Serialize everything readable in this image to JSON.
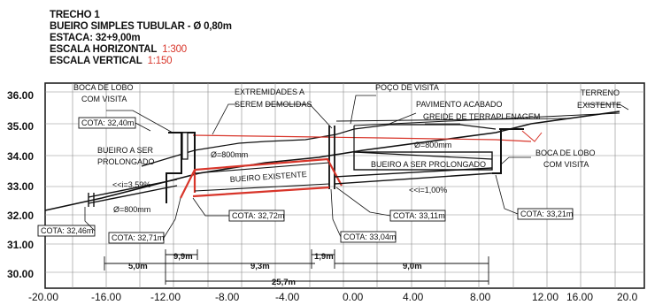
{
  "header": {
    "line1": "TRECHO 1",
    "line2": "BUEIRO SIMPLES TUBULAR - Ø 0,80m",
    "line3": "ESTACA: 32+9,00m",
    "line4_label": "ESCALA HORIZONTAL",
    "line4_value": "1:300",
    "line5_label": "ESCALA VERTICAL",
    "line5_value": "1:150"
  },
  "axes": {
    "y_ticks": [
      "36.00",
      "35.00",
      "34.00",
      "33.00",
      "32.00",
      "31.00",
      "30.00"
    ],
    "x_ticks": [
      "-20.00",
      "-16.00",
      "-12.00",
      "-8.00",
      "-4.00",
      "0.00",
      "4.00",
      "8.00",
      "12.00",
      "16.00",
      "20.0"
    ]
  },
  "labels": {
    "boca_lobo_left_1": "BOCA DE LOBO",
    "boca_lobo_left_2": "COM VISITA",
    "extremidades_1": "EXTREMIDADES A",
    "extremidades_2": "SEREM DEMOLIDAS",
    "poco_visita": "POÇO DE VISITA",
    "pavimento": "PAVIMENTO ACABADO",
    "greide": "GREIDE DE TERRAPLENAGEM",
    "terreno_1": "TERRENO",
    "terreno_2": "EXISTENTE",
    "bueiro_ser_1": "BUEIRO A SER",
    "bueiro_ser_2": "PROLONGADO",
    "slope_left": "<<i=3,59%",
    "diam_left": "Ø=800mm",
    "diam_mid": "Ø=800mm",
    "bueiro_existente": "BUEIRO EXISTENTE",
    "diam_right": "Ø=800mm",
    "bueiro_ser_right": "BUEIRO A SER PROLONGADO",
    "slope_right": "<<i=1,00%",
    "boca_lobo_right_1": "BOCA DE LOBO",
    "boca_lobo_right_2": "COM VISITA"
  },
  "cotas": {
    "c1": "COTA: 32,40m",
    "c2": "COTA: 32,46m",
    "c3": "COTA: 32,71m",
    "c4": "COTA: 32,72m",
    "c5": "COTA: 33,04m",
    "c6": "COTA: 33,11m",
    "c7": "COTA: 33,21m"
  },
  "dimensions": {
    "d1": "9,9m",
    "d2": "1,9m",
    "d3": "5,0m",
    "d4": "9,3m",
    "d5": "9,0m",
    "d6": "25,7m"
  }
}
